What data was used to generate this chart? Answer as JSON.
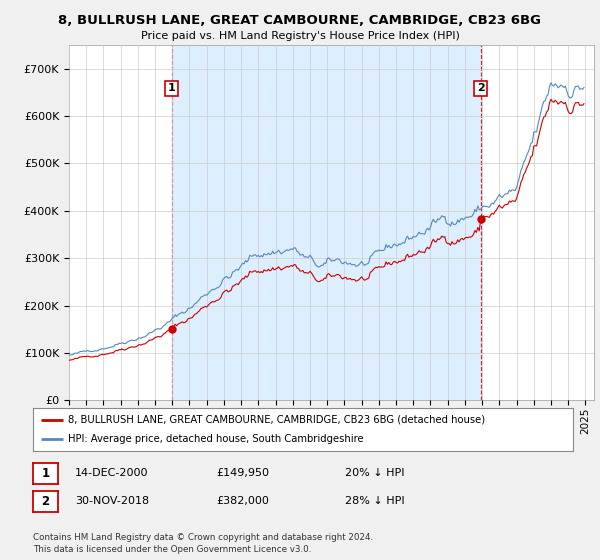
{
  "title": "8, BULLRUSH LANE, GREAT CAMBOURNE, CAMBRIDGE, CB23 6BG",
  "subtitle": "Price paid vs. HM Land Registry's House Price Index (HPI)",
  "legend_line1": "8, BULLRUSH LANE, GREAT CAMBOURNE, CAMBRIDGE, CB23 6BG (detached house)",
  "legend_line2": "HPI: Average price, detached house, South Cambridgeshire",
  "footnote": "Contains HM Land Registry data © Crown copyright and database right 2024.\nThis data is licensed under the Open Government Licence v3.0.",
  "annotation1_label": "1",
  "annotation1_date": "14-DEC-2000",
  "annotation1_price": "£149,950",
  "annotation1_hpi": "20% ↓ HPI",
  "annotation2_label": "2",
  "annotation2_date": "30-NOV-2018",
  "annotation2_price": "£382,000",
  "annotation2_hpi": "28% ↓ HPI",
  "red_color": "#cc0000",
  "blue_color": "#5588bb",
  "shade_color": "#ddeeff",
  "background_color": "#f0f0f0",
  "plot_bg_color": "#ffffff",
  "ylim": [
    0,
    750000
  ],
  "yticks": [
    0,
    100000,
    200000,
    300000,
    400000,
    500000,
    600000,
    700000
  ],
  "ytick_labels": [
    "£0",
    "£100K",
    "£200K",
    "£300K",
    "£400K",
    "£500K",
    "£600K",
    "£700K"
  ],
  "hpi_start_year": 1995,
  "hpi_end_year": 2025,
  "purchase1_x": 2000.958,
  "purchase1_y": 149950,
  "purchase2_x": 2018.917,
  "purchase2_y": 382000,
  "xlim_left": 1995.0,
  "xlim_right": 2025.5
}
